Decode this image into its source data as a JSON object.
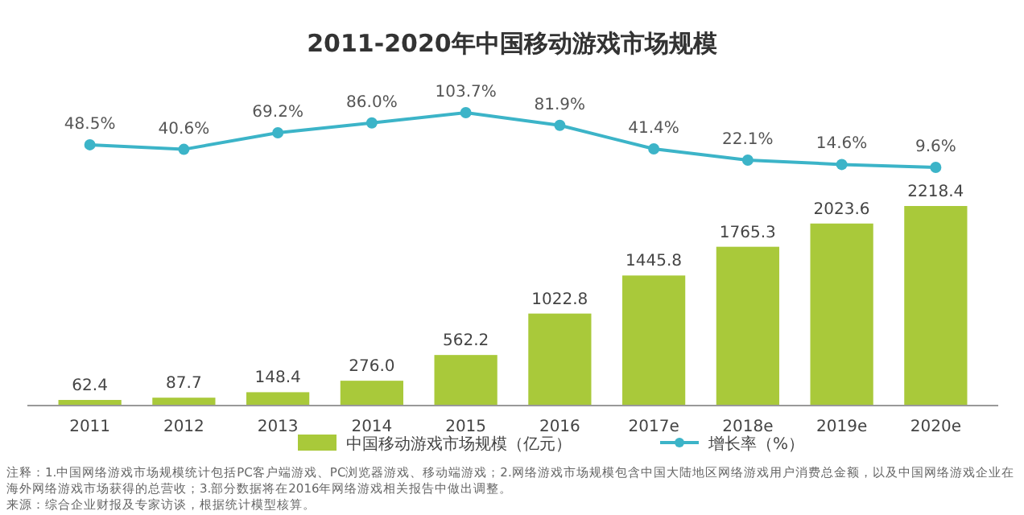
{
  "chart_data": [
    {
      "type": "line",
      "title": "2011-2020年中国移动游戏市场规模",
      "categories": [
        null,
        null,
        null,
        null,
        null,
        null,
        null,
        null,
        null,
        null
      ],
      "series": [
        {
          "name": "增长率（%）",
          "color": "#3cb4c8",
          "values": [
            48.5,
            40.6,
            69.2,
            86.0,
            103.7,
            81.9,
            41.4,
            22.1,
            14.6,
            9.6
          ],
          "value_labels": [
            "48.5%",
            "40.6%",
            "69.2%",
            "86.0%",
            "103.7%",
            "81.9%",
            "41.4%",
            "22.1%",
            "14.6%",
            "9.6%"
          ]
        }
      ],
      "marker": "circle",
      "legend": "bottom"
    },
    {
      "type": "bar",
      "categories": [
        "2011",
        "2012",
        "2013",
        "2014",
        "2015",
        "2016",
        "2017e",
        "2018e",
        "2019e",
        "2020e"
      ],
      "series": [
        {
          "name": "中国移动游戏市场规模（亿元）",
          "color": "#a9c93a",
          "values": [
            62.4,
            87.7,
            148.4,
            276.0,
            562.2,
            1022.8,
            1445.8,
            1765.3,
            2023.6,
            2218.4
          ],
          "value_labels": [
            "62.4",
            "87.7",
            "148.4",
            "276.0",
            "562.2",
            "1022.8",
            "1445.8",
            "1765.3",
            "2023.6",
            "2218.4"
          ]
        }
      ],
      "tick_labels": "x",
      "legend": "bottom",
      "annotations": [
        "注释：1.中国网络游戏市场规模统计包括PC客户端游戏、PC浏览器游戏、移动端游戏；2.网络游戏市场规模包含中国大陆地区网络游戏用户消费总金额，以及中国网络游戏企业在",
        "海外网络游戏市场获得的总营收；3.部分数据将在2016年网络游戏相关报告中做出调整。",
        "来源：综合企业财报及专家访谈，根据统计模型核算。"
      ]
    }
  ]
}
